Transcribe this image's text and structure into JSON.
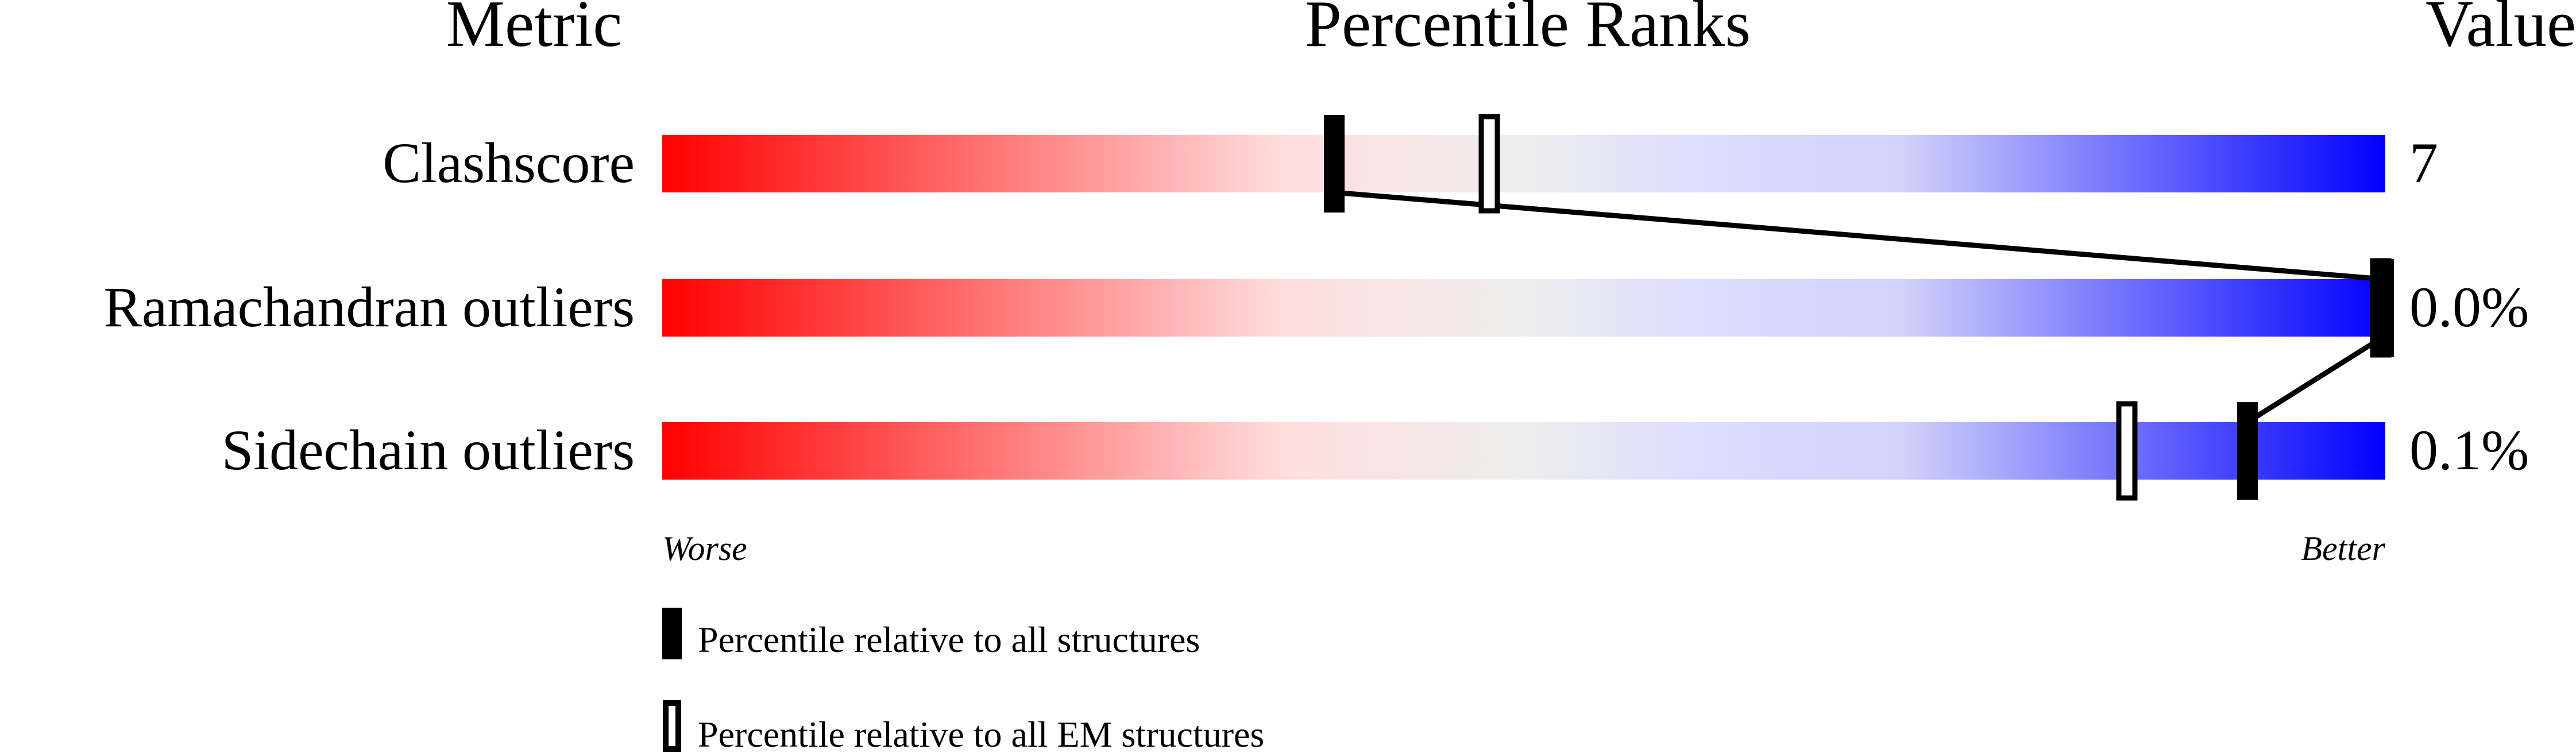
{
  "chart_data": {
    "type": "bar",
    "title": "Percentile Ranks",
    "column_headers": {
      "metric": "Metric",
      "ranks": "Percentile Ranks",
      "value": "Value"
    },
    "xlim": [
      0,
      100
    ],
    "axis_labels": {
      "left": "Worse",
      "right": "Better"
    },
    "gradient_colors": [
      "#ff0000",
      "#ffdddd",
      "#eeeeee",
      "#ddddff",
      "#0000ff"
    ],
    "metrics": [
      {
        "name": "Clashscore",
        "value": "7",
        "percentile_all": 39,
        "percentile_em": 48
      },
      {
        "name": "Ramachandran outliers",
        "value": "0.0%",
        "percentile_all": 100,
        "percentile_em": 100
      },
      {
        "name": "Sidechain outliers",
        "value": "0.1%",
        "percentile_all": 92,
        "percentile_em": 85
      }
    ],
    "legend": [
      {
        "marker": "filled",
        "label": "Percentile relative to all structures"
      },
      {
        "marker": "open",
        "label": "Percentile relative to all EM structures"
      }
    ]
  }
}
